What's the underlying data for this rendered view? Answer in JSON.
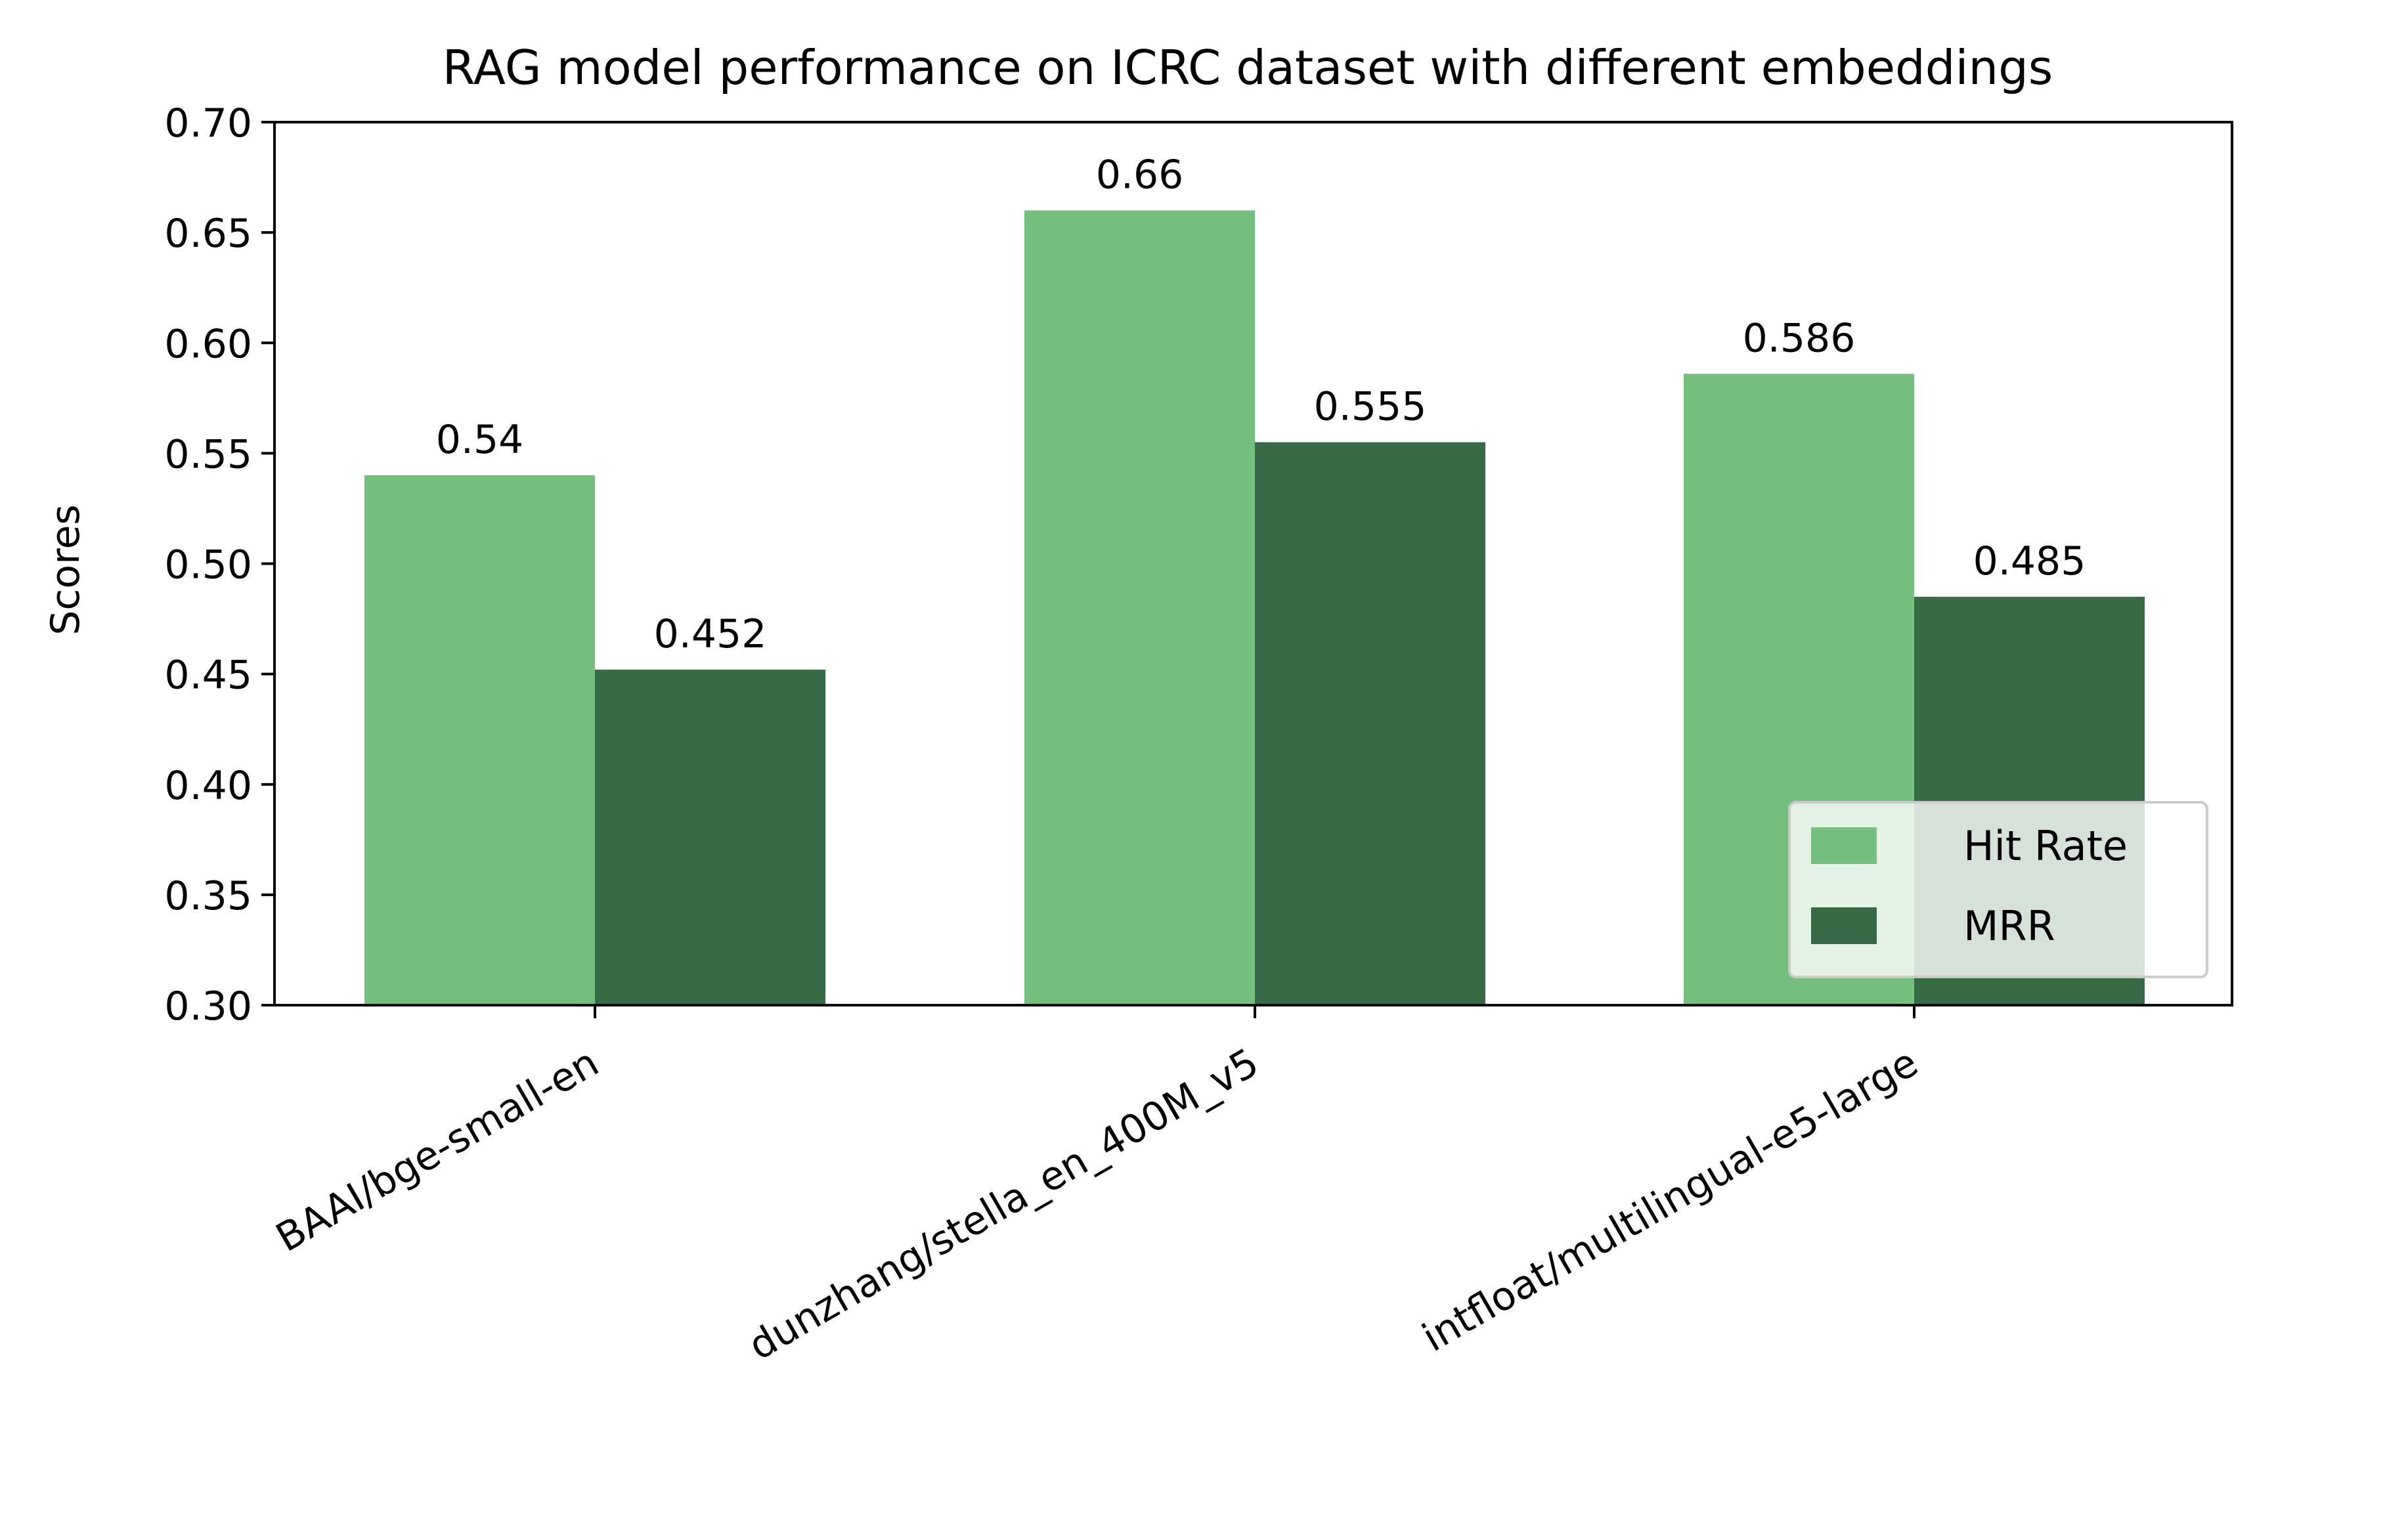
{
  "chart_data": {
    "type": "bar",
    "title": "RAG model performance on ICRC dataset with different embeddings",
    "xlabel": "",
    "ylabel": "Scores",
    "ylim": [
      0.3,
      0.7
    ],
    "yticks": [
      "0.30",
      "0.35",
      "0.40",
      "0.45",
      "0.50",
      "0.55",
      "0.60",
      "0.65",
      "0.70"
    ],
    "categories": [
      "BAAI/bge-small-en",
      "dunzhang/stella_en_400M_v5",
      "intfloat/multilingual-e5-large"
    ],
    "series": [
      {
        "name": "Hit Rate",
        "values": [
          0.54,
          0.66,
          0.586
        ],
        "labels": [
          "0.54",
          "0.66",
          "0.586"
        ],
        "color": "#74bf7e"
      },
      {
        "name": "MRR",
        "values": [
          0.452,
          0.555,
          0.485
        ],
        "labels": [
          "0.452",
          "0.555",
          "0.485"
        ],
        "color": "#366b45"
      }
    ],
    "grid": false,
    "legend_position": "lower right"
  }
}
